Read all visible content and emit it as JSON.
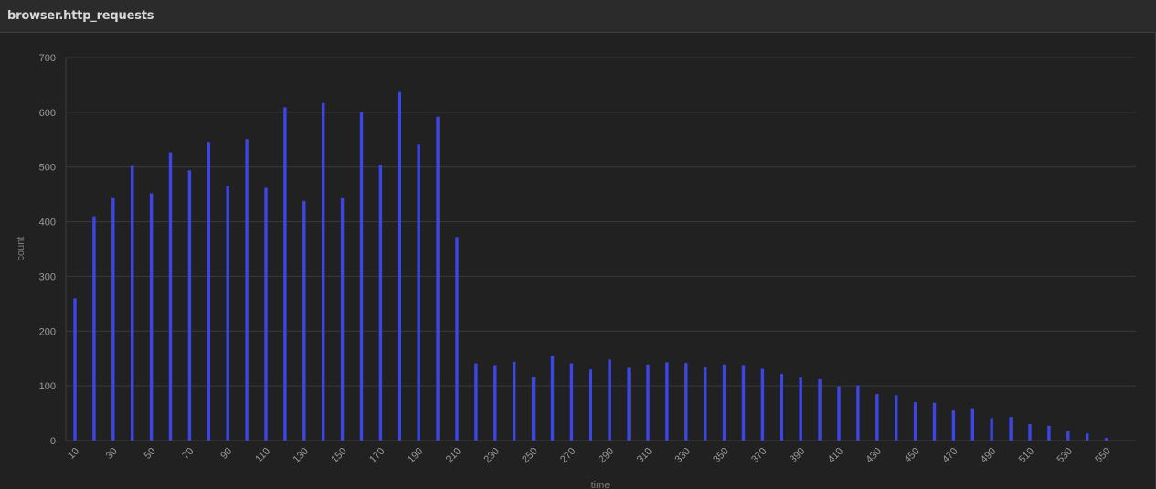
{
  "panel": {
    "title": "browser.http_requests"
  },
  "colors": {
    "bar": "#3c45e6",
    "grid": "#3a3a3a",
    "background": "#212121"
  },
  "chart_data": {
    "type": "bar",
    "title": "browser.http_requests",
    "xlabel": "time",
    "ylabel": "count",
    "ylim": [
      0,
      700
    ],
    "yticks": [
      0,
      100,
      200,
      300,
      400,
      500,
      600,
      700
    ],
    "grid": true,
    "categories": [
      10,
      20,
      30,
      40,
      50,
      60,
      70,
      80,
      90,
      100,
      110,
      120,
      130,
      140,
      150,
      160,
      170,
      180,
      190,
      200,
      210,
      220,
      230,
      240,
      250,
      260,
      270,
      280,
      290,
      300,
      310,
      320,
      330,
      340,
      350,
      360,
      370,
      380,
      390,
      400,
      410,
      420,
      430,
      440,
      450,
      460,
      470,
      480,
      490,
      500,
      510,
      520,
      530,
      540,
      550
    ],
    "tick_labels": [
      10,
      30,
      50,
      70,
      90,
      110,
      130,
      150,
      170,
      190,
      210,
      230,
      250,
      270,
      290,
      310,
      330,
      350,
      370,
      390,
      410,
      430,
      450,
      470,
      490,
      510,
      530,
      550
    ],
    "series": [
      {
        "values": [
          260,
          410,
          443,
          502,
          452,
          527,
          494,
          546,
          465,
          551,
          462,
          609,
          438,
          617,
          443,
          600,
          504,
          637,
          541,
          592,
          372,
          141,
          138,
          144,
          116,
          155,
          141,
          130,
          148,
          133,
          139,
          143,
          142,
          134,
          139,
          138,
          131,
          122,
          115,
          112,
          99,
          101,
          85,
          83,
          70,
          69,
          55,
          59,
          41,
          43,
          30,
          27,
          17,
          13,
          5
        ]
      }
    ]
  }
}
